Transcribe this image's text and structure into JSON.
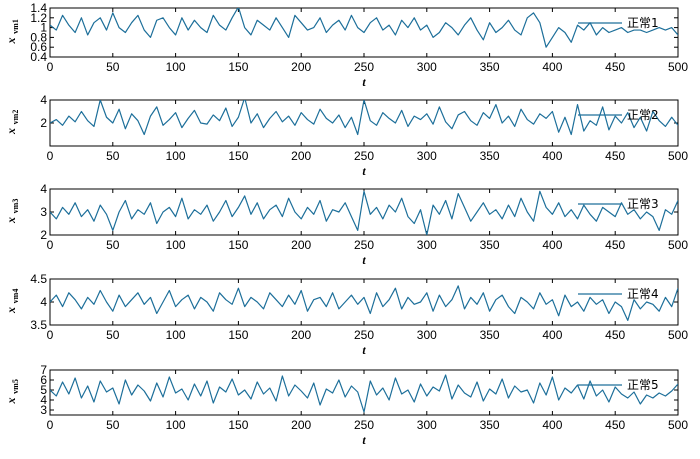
{
  "chart_data": [
    {
      "type": "line",
      "ylabel": "x",
      "ylabel_sub": "vm1",
      "xlabel": "t",
      "xlim": [
        0,
        500
      ],
      "ylim": [
        0.4,
        1.4
      ],
      "x_ticks": [
        0,
        50,
        100,
        150,
        200,
        250,
        300,
        350,
        400,
        450,
        500
      ],
      "y_ticks": [
        0.4,
        0.6,
        0.8,
        1.0,
        1.2,
        1.4
      ],
      "y_tick_labels": [
        "0.4",
        "0.6",
        "0.8",
        "1",
        "1.2",
        "1.4"
      ],
      "legend_position": "right",
      "color": "#1d6f9a",
      "series": [
        {
          "name": "正常1",
          "x_start": 0,
          "x_step": 5,
          "values": [
            1.05,
            0.95,
            1.25,
            1.05,
            0.9,
            1.2,
            0.85,
            1.1,
            1.2,
            0.95,
            1.3,
            1.0,
            0.9,
            1.1,
            1.25,
            0.95,
            0.8,
            1.15,
            1.2,
            1.0,
            0.85,
            1.2,
            0.95,
            1.15,
            1.0,
            0.9,
            1.25,
            1.05,
            0.95,
            1.2,
            1.42,
            1.0,
            0.85,
            1.15,
            1.05,
            0.95,
            1.2,
            1.0,
            0.8,
            1.25,
            1.1,
            0.95,
            1.0,
            1.2,
            0.9,
            1.05,
            1.15,
            0.95,
            1.25,
            1.0,
            0.9,
            1.1,
            1.2,
            0.95,
            1.05,
            0.85,
            1.15,
            1.0,
            1.2,
            0.95,
            1.05,
            0.8,
            0.9,
            1.1,
            1.0,
            0.85,
            1.05,
            1.2,
            0.95,
            0.75,
            1.1,
            0.9,
            1.0,
            1.15,
            0.95,
            0.85,
            1.2,
            1.3,
            1.1,
            0.6,
            0.8,
            1.0,
            0.9,
            0.7,
            1.05,
            0.95,
            1.1,
            0.85,
            1.0,
            0.9,
            0.95,
            1.0,
            0.9,
            0.95,
            0.95,
            0.9,
            0.95,
            1.0,
            0.95,
            1.0,
            0.85
          ]
        }
      ]
    },
    {
      "type": "line",
      "ylabel": "x",
      "ylabel_sub": "vm2",
      "xlabel": "t",
      "xlim": [
        0,
        500
      ],
      "ylim": [
        0,
        4
      ],
      "x_ticks": [
        0,
        50,
        100,
        150,
        200,
        250,
        300,
        350,
        400,
        450,
        500
      ],
      "y_ticks": [
        2,
        4
      ],
      "y_tick_labels": [
        "2",
        "4"
      ],
      "legend_position": "right",
      "color": "#1d6f9a",
      "series": [
        {
          "name": "正常2",
          "x_start": 0,
          "x_step": 5,
          "values": [
            2.0,
            2.3,
            1.8,
            2.6,
            2.1,
            3.0,
            2.2,
            1.7,
            4.0,
            2.5,
            2.0,
            3.2,
            1.5,
            2.8,
            2.2,
            1.0,
            2.6,
            3.4,
            1.8,
            2.3,
            2.9,
            1.6,
            2.4,
            3.1,
            2.0,
            1.9,
            2.7,
            2.2,
            3.3,
            1.7,
            2.5,
            4.2,
            2.0,
            2.8,
            1.6,
            2.4,
            3.0,
            2.1,
            2.6,
            1.8,
            2.9,
            2.3,
            1.9,
            3.2,
            2.4,
            2.0,
            2.7,
            1.6,
            2.5,
            1.0,
            4.0,
            2.2,
            1.8,
            2.9,
            2.4,
            2.0,
            3.1,
            1.7,
            2.6,
            2.3,
            2.8,
            1.9,
            3.4,
            2.1,
            1.5,
            2.7,
            3.0,
            2.2,
            1.8,
            2.9,
            2.4,
            3.6,
            2.0,
            2.6,
            1.7,
            3.2,
            2.3,
            1.9,
            2.8,
            2.4,
            3.0,
            1.2,
            2.5,
            1.0,
            3.6,
            1.3,
            2.2,
            1.8,
            3.4,
            1.4,
            2.6,
            2.0,
            2.9,
            1.6,
            2.5,
            1.3,
            3.0,
            2.2,
            1.7,
            2.5,
            1.8
          ]
        }
      ]
    },
    {
      "type": "line",
      "ylabel": "x",
      "ylabel_sub": "vm3",
      "xlabel": "t",
      "xlim": [
        0,
        500
      ],
      "ylim": [
        2,
        4
      ],
      "x_ticks": [
        0,
        50,
        100,
        150,
        200,
        250,
        300,
        350,
        400,
        450,
        500
      ],
      "y_ticks": [
        2,
        3,
        4
      ],
      "y_tick_labels": [
        "2",
        "3",
        "4"
      ],
      "legend_position": "right",
      "color": "#1d6f9a",
      "series": [
        {
          "name": "正常3",
          "x_start": 0,
          "x_step": 5,
          "values": [
            3.0,
            2.7,
            3.2,
            2.9,
            3.4,
            2.8,
            3.1,
            2.6,
            3.3,
            2.9,
            2.2,
            3.0,
            3.5,
            2.7,
            3.1,
            2.9,
            3.4,
            2.5,
            3.0,
            3.2,
            2.8,
            3.6,
            2.7,
            3.1,
            2.9,
            3.3,
            2.6,
            3.0,
            3.5,
            2.8,
            3.2,
            3.7,
            2.9,
            3.4,
            2.7,
            3.1,
            3.3,
            2.8,
            3.6,
            3.0,
            2.7,
            3.2,
            2.9,
            3.5,
            2.6,
            3.1,
            3.0,
            3.4,
            2.8,
            2.2,
            3.9,
            2.9,
            3.2,
            2.7,
            3.3,
            3.0,
            3.6,
            2.8,
            2.5,
            3.1,
            2.0,
            3.3,
            2.9,
            3.5,
            2.7,
            3.8,
            3.2,
            2.6,
            3.0,
            3.4,
            2.9,
            3.1,
            2.7,
            3.3,
            2.8,
            3.6,
            3.0,
            2.6,
            3.9,
            3.2,
            2.9,
            3.4,
            2.8,
            3.1,
            2.7,
            3.3,
            2.9,
            2.6,
            3.2,
            3.0,
            2.8,
            3.4,
            2.9,
            3.1,
            2.7,
            3.0,
            2.8,
            2.2,
            3.1,
            2.9,
            3.5
          ]
        }
      ]
    },
    {
      "type": "line",
      "ylabel": "x",
      "ylabel_sub": "vm4",
      "xlabel": "t",
      "xlim": [
        0,
        500
      ],
      "ylim": [
        3.5,
        4.5
      ],
      "x_ticks": [
        0,
        50,
        100,
        150,
        200,
        250,
        300,
        350,
        400,
        450,
        500
      ],
      "y_ticks": [
        3.5,
        4.0,
        4.5
      ],
      "y_tick_labels": [
        "3.5",
        "4",
        "4.5"
      ],
      "legend_position": "right",
      "color": "#1d6f9a",
      "series": [
        {
          "name": "正常4",
          "x_start": 0,
          "x_step": 5,
          "values": [
            4.0,
            4.15,
            3.9,
            4.2,
            4.05,
            3.85,
            4.1,
            3.95,
            4.25,
            4.0,
            3.8,
            4.15,
            3.9,
            4.05,
            4.2,
            3.95,
            4.1,
            3.75,
            4.0,
            4.25,
            3.9,
            4.05,
            4.15,
            3.85,
            4.1,
            4.0,
            3.8,
            4.2,
            4.05,
            3.95,
            4.3,
            3.9,
            4.1,
            4.0,
            3.85,
            4.2,
            4.05,
            3.9,
            4.15,
            3.95,
            4.25,
            3.8,
            4.05,
            4.1,
            3.9,
            4.2,
            3.85,
            4.0,
            4.15,
            3.95,
            4.1,
            3.75,
            4.2,
            3.9,
            4.05,
            4.3,
            3.85,
            4.1,
            3.95,
            4.0,
            4.2,
            3.8,
            4.15,
            3.9,
            4.05,
            4.35,
            3.85,
            4.1,
            3.95,
            4.2,
            3.8,
            4.05,
            4.15,
            3.9,
            3.75,
            4.1,
            4.0,
            3.85,
            4.2,
            3.95,
            4.05,
            3.7,
            4.15,
            3.9,
            4.0,
            3.8,
            4.1,
            3.95,
            4.05,
            3.75,
            4.0,
            3.9,
            3.6,
            4.05,
            3.85,
            4.0,
            3.95,
            3.8,
            4.1,
            3.9,
            4.3
          ]
        }
      ]
    },
    {
      "type": "line",
      "ylabel": "x",
      "ylabel_sub": "vm5",
      "xlabel": "t",
      "xlim": [
        0,
        500
      ],
      "ylim": [
        2.5,
        7
      ],
      "x_ticks": [
        0,
        50,
        100,
        150,
        200,
        250,
        300,
        350,
        400,
        450,
        500
      ],
      "y_ticks": [
        3,
        4,
        5,
        6,
        7
      ],
      "y_tick_labels": [
        "3",
        "4",
        "5",
        "6",
        "7"
      ],
      "legend_position": "right",
      "color": "#1d6f9a",
      "series": [
        {
          "name": "正常5",
          "x_start": 0,
          "x_step": 5,
          "values": [
            5.0,
            4.4,
            5.8,
            4.6,
            6.2,
            4.2,
            5.4,
            3.8,
            5.9,
            4.8,
            5.2,
            3.6,
            6.0,
            4.5,
            5.5,
            4.9,
            3.9,
            5.7,
            4.3,
            6.3,
            4.7,
            5.1,
            4.0,
            5.6,
            4.4,
            5.9,
            3.7,
            5.3,
            4.8,
            6.1,
            4.5,
            5.0,
            4.1,
            5.8,
            4.6,
            5.2,
            3.9,
            6.4,
            4.4,
            5.5,
            4.9,
            4.2,
            5.7,
            3.5,
            5.1,
            4.7,
            6.0,
            4.3,
            5.4,
            4.8,
            2.8,
            5.9,
            4.5,
            5.2,
            4.0,
            6.2,
            4.6,
            5.0,
            3.8,
            5.6,
            4.4,
            5.3,
            4.9,
            6.5,
            4.1,
            5.5,
            4.7,
            4.3,
            5.8,
            3.9,
            5.1,
            4.6,
            6.1,
            4.2,
            5.4,
            4.8,
            5.0,
            3.7,
            5.7,
            4.5,
            6.3,
            4.0,
            5.2,
            4.7,
            5.5,
            4.1,
            5.9,
            4.4,
            5.0,
            3.8,
            5.3,
            4.6,
            4.2,
            4.8,
            3.6,
            4.5,
            4.2,
            4.7,
            4.4,
            4.9,
            5.6
          ]
        }
      ]
    }
  ]
}
